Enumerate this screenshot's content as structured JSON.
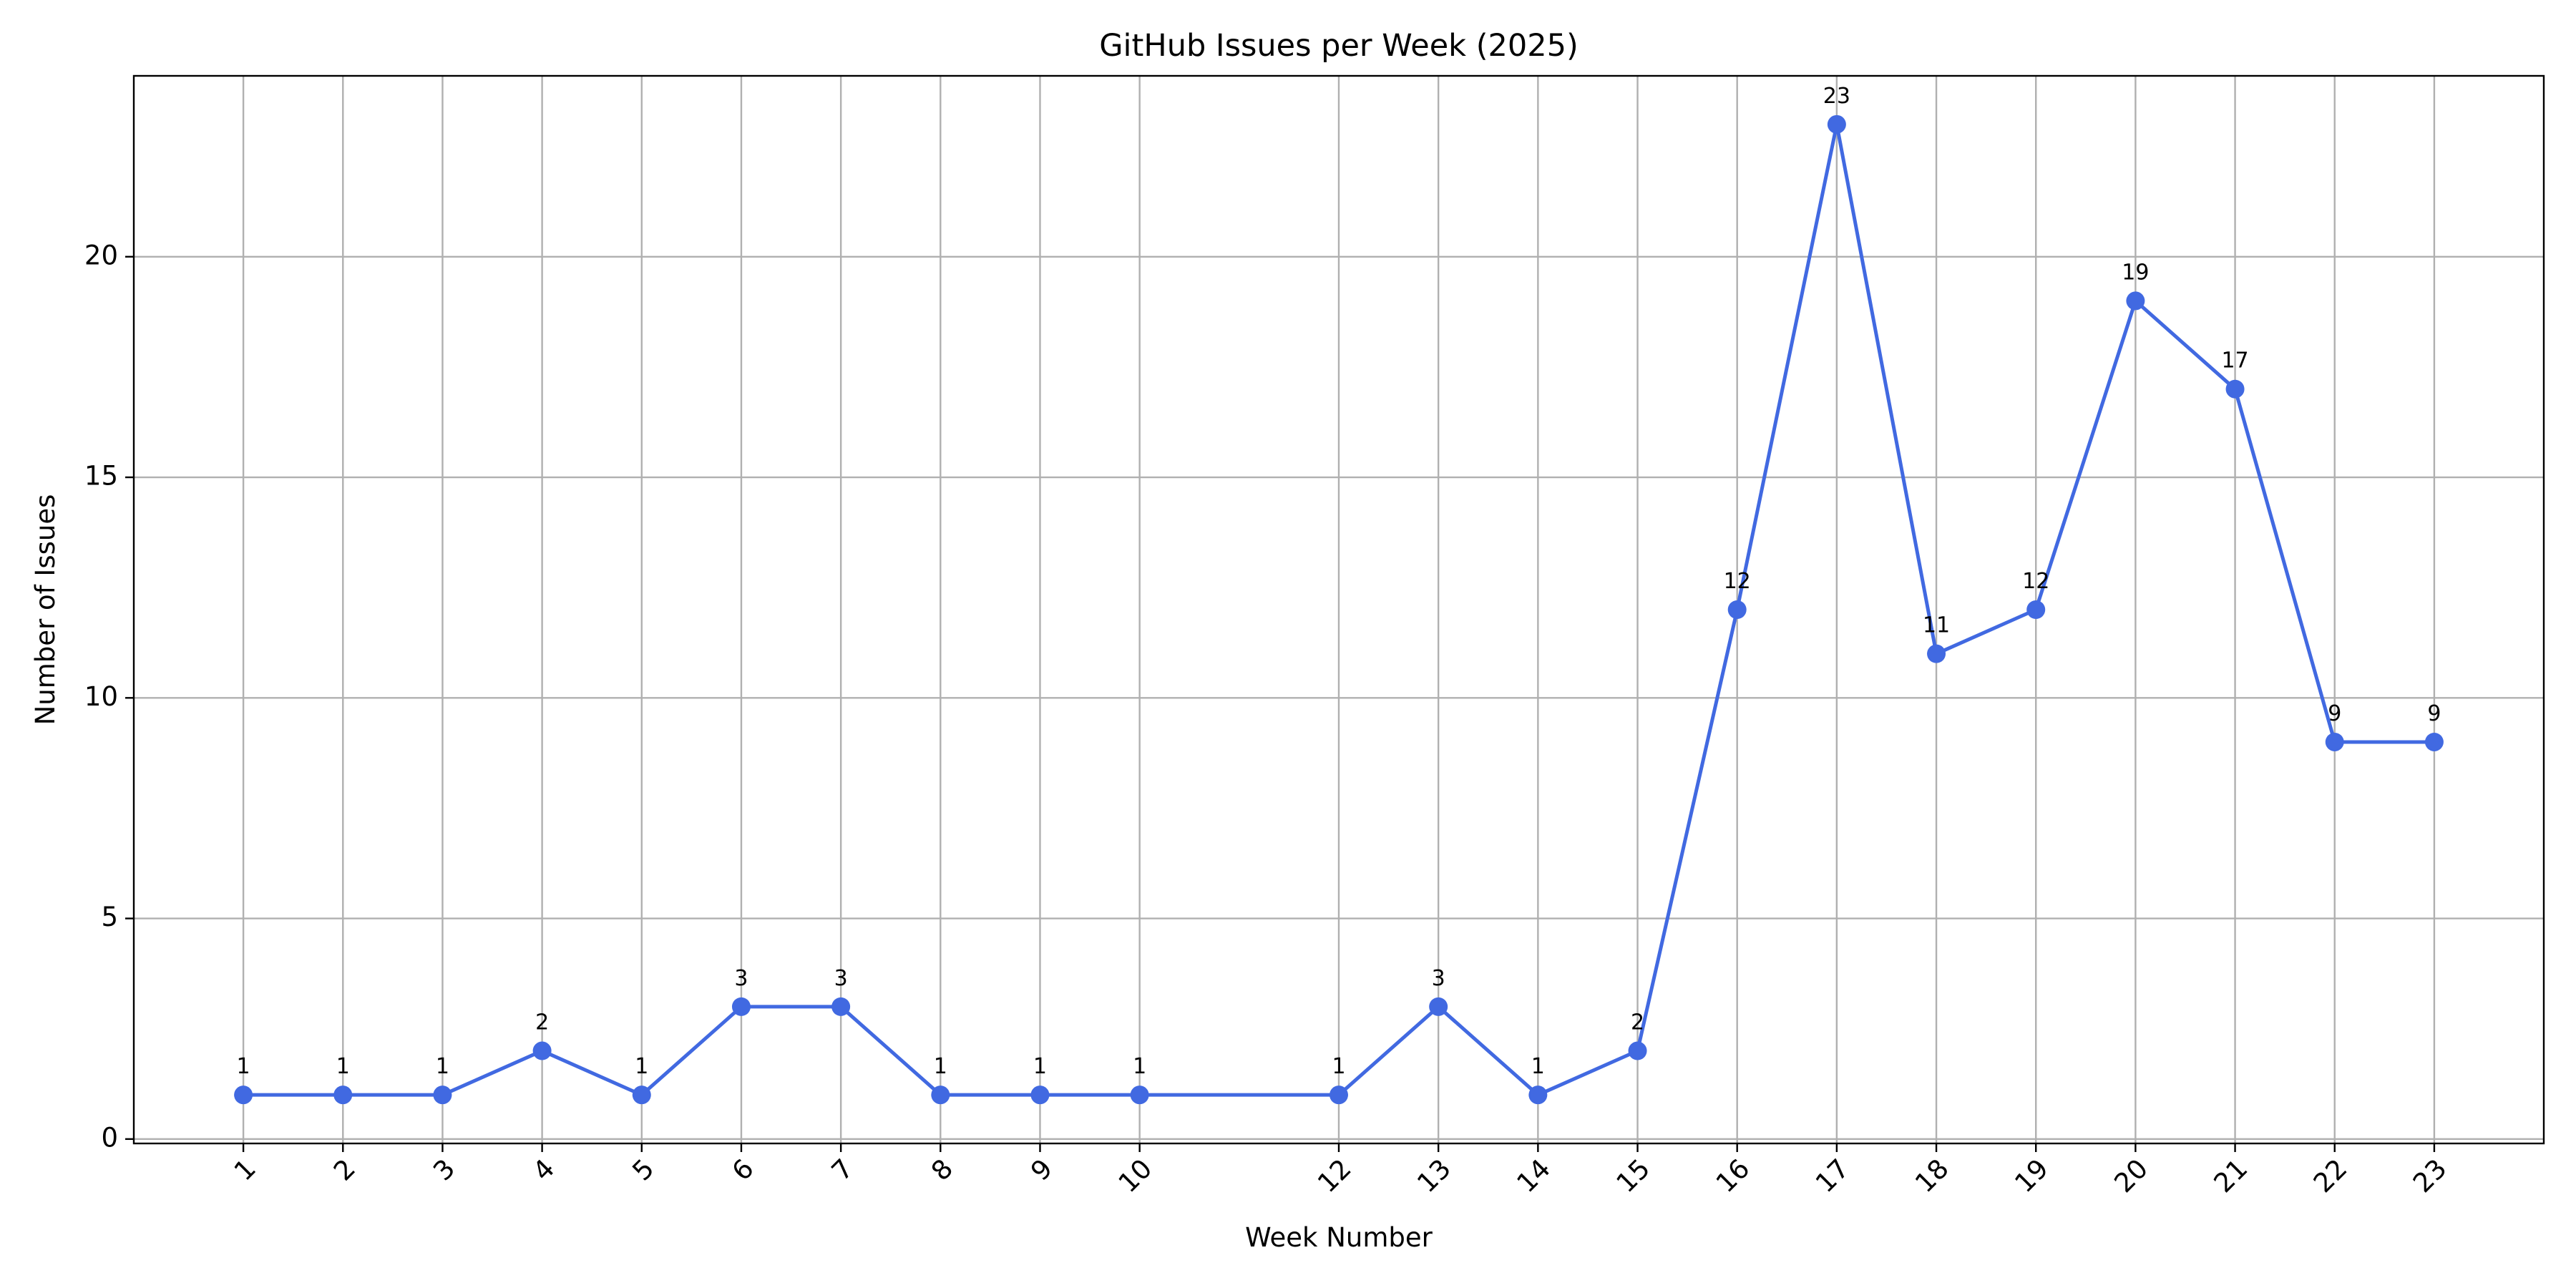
{
  "chart_data": {
    "type": "line",
    "title": "GitHub Issues per Week (2025)",
    "xlabel": "Week Number",
    "ylabel": "Number of Issues",
    "x": [
      1,
      2,
      3,
      4,
      5,
      6,
      7,
      8,
      9,
      10,
      12,
      13,
      14,
      15,
      16,
      17,
      18,
      19,
      20,
      21,
      22,
      23
    ],
    "series": [
      {
        "values": [
          1,
          1,
          1,
          2,
          1,
          3,
          3,
          1,
          1,
          1,
          1,
          3,
          1,
          2,
          12,
          23,
          11,
          12,
          19,
          17,
          9,
          9
        ],
        "color": "#4169e1"
      }
    ],
    "xlim": [
      -0.1,
      24.1
    ],
    "ylim": [
      -0.1,
      24.1
    ],
    "yticks": [
      0,
      5,
      10,
      15,
      20
    ],
    "grid": true,
    "marker": "circle",
    "data_labels": true
  }
}
